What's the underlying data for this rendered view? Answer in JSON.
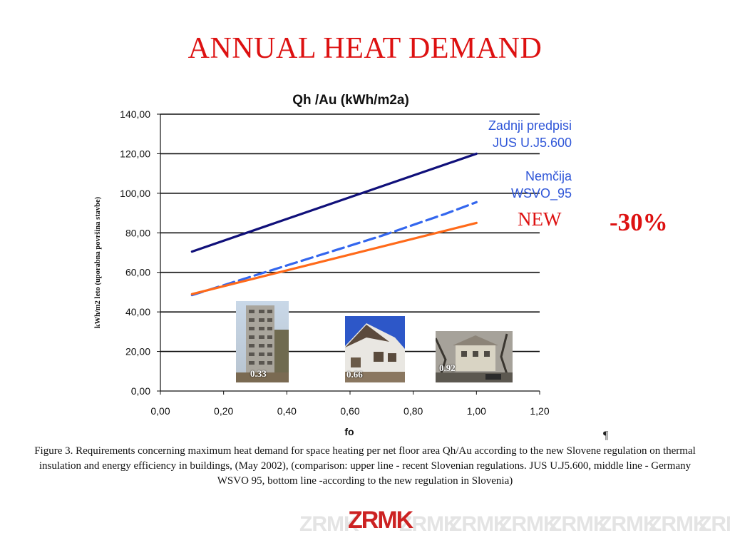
{
  "slide": {
    "title": "ANNUAL HEAT DEMAND",
    "new_label": "NEW",
    "reduction_label": "-30%",
    "pilcrow": "¶",
    "caption": "Figure 3. Requirements concerning maximum heat demand for space heating per net floor area Qh/Au according to the new Slovene regulation on thermal insulation and energy efficiency in buildings, (May 2002), (comparison: upper line - recent Slovenian regulations. JUS U.J5.600, middle line - Germany WSVO 95, bottom line -according to the new regulation in Slovenia)"
  },
  "photos": [
    {
      "label": "0.33"
    },
    {
      "label": "0.66"
    },
    {
      "label": "0.92"
    }
  ],
  "logo": {
    "text": "ZRMK",
    "color": "#cc2222"
  },
  "chart_data": {
    "type": "line",
    "title": "Qh /Au (kWh/m2a)",
    "xlabel": "fo",
    "ylabel": "kWh/m2 leto (uporabna površina stavbe)",
    "xlim": [
      0,
      1.2
    ],
    "ylim": [
      0,
      140
    ],
    "xticks": [
      "0,00",
      "0,20",
      "0,40",
      "0,60",
      "0,80",
      "1,00",
      "1,20"
    ],
    "yticks": [
      "0,00",
      "20,00",
      "40,00",
      "60,00",
      "80,00",
      "100,00",
      "120,00",
      "140,00"
    ],
    "grid": "horizontal",
    "series": [
      {
        "name": "Zadnji predpisi JUS U.J5.600",
        "legend_lines": [
          "Zadnji predpisi",
          "JUS U.J5.600"
        ],
        "color": "#10107a",
        "style": "solid",
        "x": [
          0.1,
          1.0
        ],
        "y": [
          70.5,
          120
        ]
      },
      {
        "name": "Nemčija WSVO_95",
        "legend_lines": [
          "Nemčija",
          "WSVO_95"
        ],
        "color": "#3366ee",
        "style": "dashed",
        "x": [
          0.1,
          0.2,
          0.3,
          0.4,
          0.5,
          0.6,
          0.7,
          0.8,
          0.9,
          1.0
        ],
        "y": [
          48.5,
          53.5,
          58.5,
          63.5,
          68.5,
          73.5,
          78.5,
          84.0,
          89.5,
          95.5
        ]
      },
      {
        "name": "",
        "legend_lines": [],
        "color": "#ff6a1a",
        "style": "solid",
        "x": [
          0.1,
          1.0
        ],
        "y": [
          49,
          85
        ]
      }
    ]
  }
}
